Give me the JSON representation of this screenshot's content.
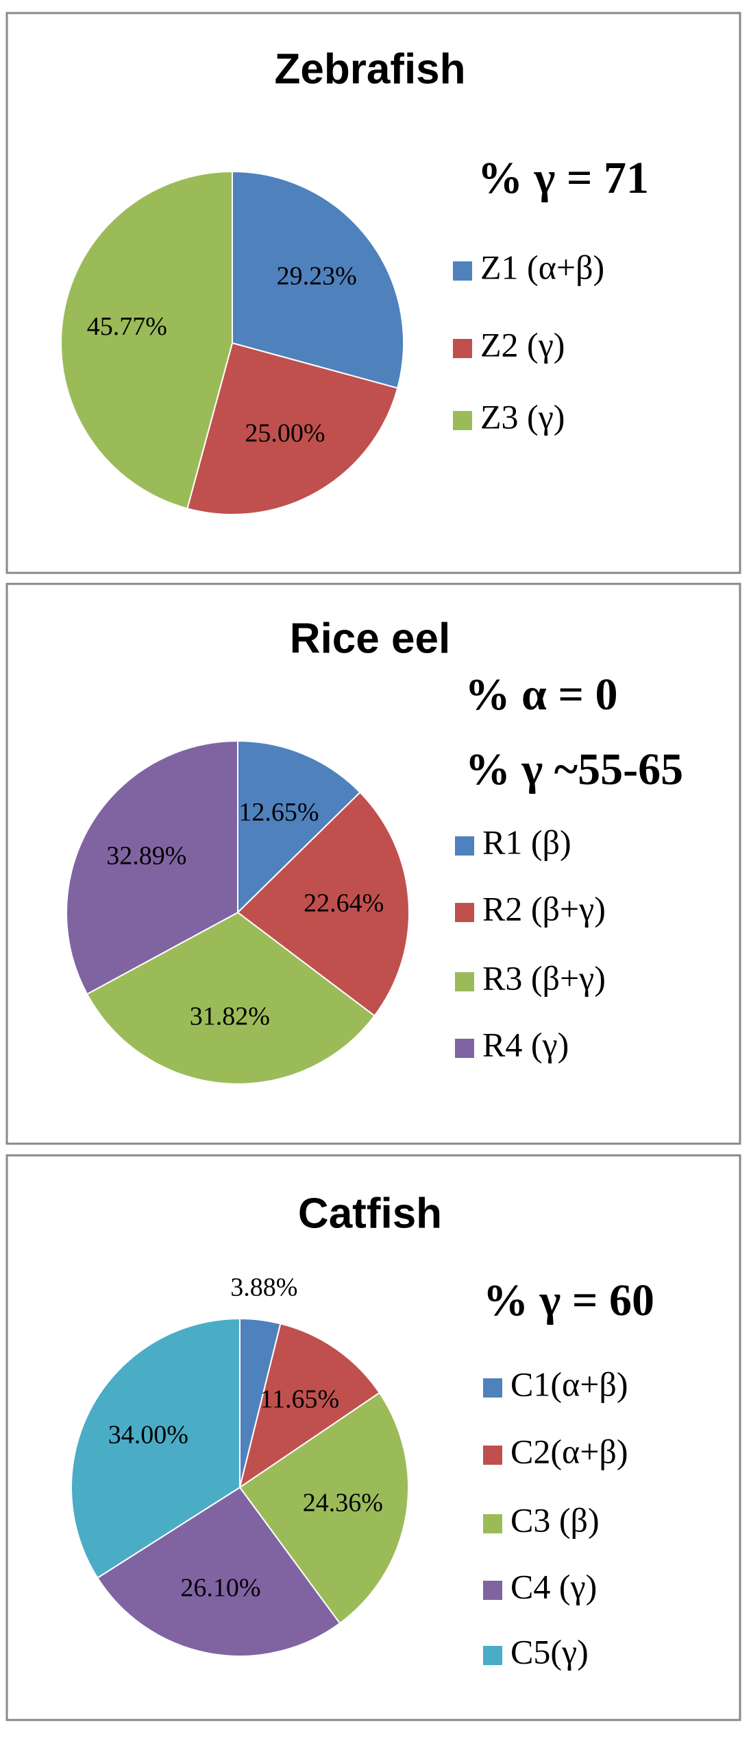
{
  "chart_data": [
    {
      "type": "pie",
      "title": "Zebrafish",
      "annotations": [
        "%  γ = 71"
      ],
      "categories": [
        "Z1 (α+β)",
        "Z2 (γ)",
        "Z3 (γ)"
      ],
      "values": [
        29.23,
        25.0,
        45.77
      ],
      "value_labels": [
        "29.23%",
        "25.00%",
        "45.77%"
      ],
      "colors": [
        "#4f81bd",
        "#c0504d",
        "#9bbb59"
      ]
    },
    {
      "type": "pie",
      "title": "Rice eel",
      "annotations": [
        "% α = 0",
        "%  γ ~55-65"
      ],
      "categories": [
        "R1 (β)",
        "R2 (β+γ)",
        "R3 (β+γ)",
        "R4 (γ)"
      ],
      "values": [
        12.65,
        22.64,
        31.82,
        32.89
      ],
      "value_labels": [
        "12.65%",
        "22.64%",
        "31.82%",
        "32.89%"
      ],
      "colors": [
        "#4f81bd",
        "#c0504d",
        "#9bbb59",
        "#8064a2"
      ]
    },
    {
      "type": "pie",
      "title": "Catfish",
      "annotations": [
        "%  γ = 60"
      ],
      "categories": [
        "C1(α+β)",
        "C2(α+β)",
        "C3 (β)",
        "C4 (γ)",
        "C5(γ)"
      ],
      "values": [
        3.88,
        11.65,
        24.36,
        26.1,
        34.0
      ],
      "value_labels": [
        "3.88%",
        "11.65%",
        "24.36%",
        "26.10%",
        "34.00%"
      ],
      "colors": [
        "#4f81bd",
        "#c0504d",
        "#9bbb59",
        "#8064a2",
        "#4bacc6"
      ]
    }
  ]
}
